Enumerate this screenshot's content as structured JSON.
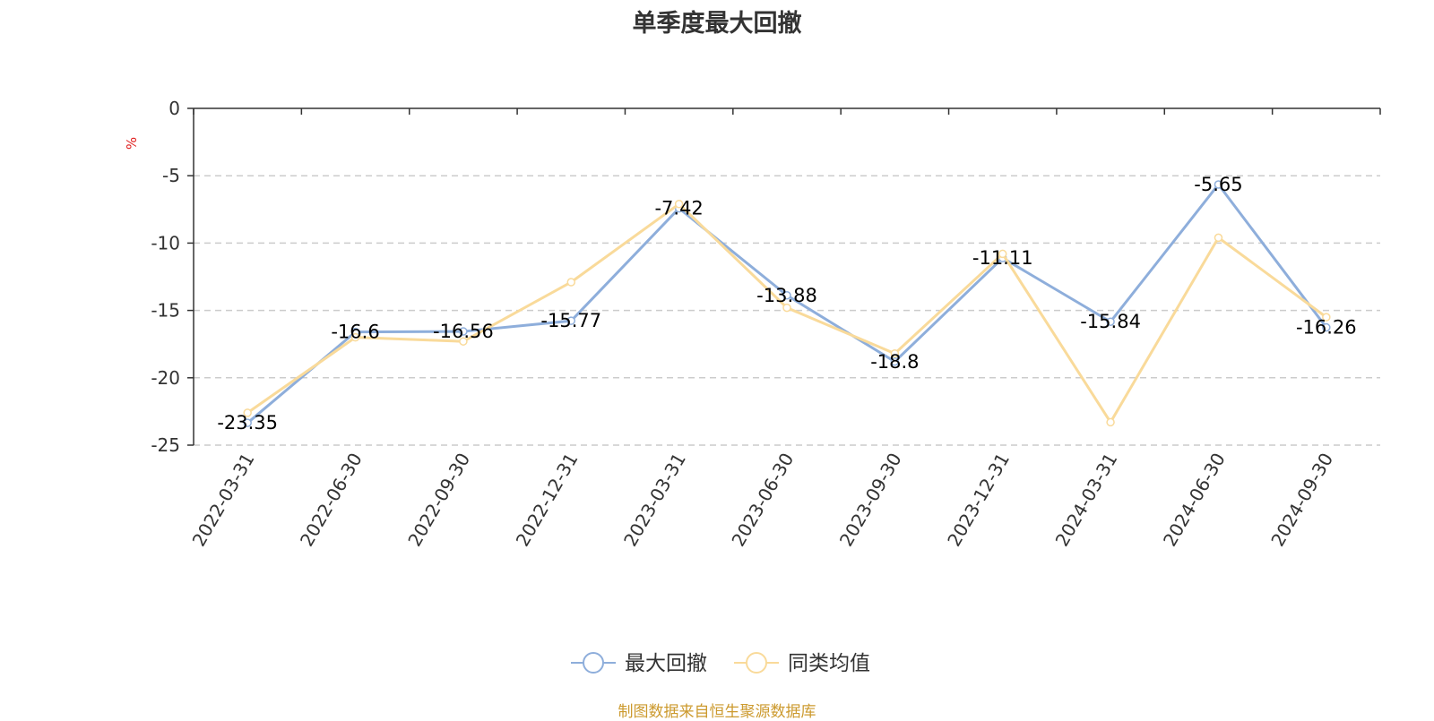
{
  "chart_data": {
    "type": "line",
    "title": "单季度最大回撤",
    "ylabel": "%",
    "xlabel": "",
    "ylim": [
      -25,
      0
    ],
    "yticks": [
      0,
      -5,
      -10,
      -15,
      -20,
      -25
    ],
    "grid": true,
    "legend_position": "bottom-center",
    "x": [
      "2022-03-31",
      "2022-06-30",
      "2022-09-30",
      "2022-12-31",
      "2023-03-31",
      "2023-06-30",
      "2023-09-30",
      "2023-12-31",
      "2024-03-31",
      "2024-06-30",
      "2024-09-30"
    ],
    "series": [
      {
        "name": "最大回撤",
        "color": "#8eaedb",
        "values": [
          -23.35,
          -16.6,
          -16.56,
          -15.77,
          -7.42,
          -13.88,
          -18.8,
          -11.11,
          -15.84,
          -5.65,
          -16.26
        ],
        "data_labels": [
          "-23.35",
          "-16.6",
          "-16.56",
          "-15.77",
          "-7.42",
          "-13.88",
          "-18.8",
          "-11.11",
          "-15.84",
          "-5.65",
          "-16.26"
        ]
      },
      {
        "name": "同类均值",
        "color": "#f9da9a",
        "values": [
          -22.6,
          -17.0,
          -17.3,
          -12.9,
          -7.1,
          -14.8,
          -18.2,
          -10.8,
          -23.3,
          -9.6,
          -15.5
        ]
      }
    ],
    "source_note": "制图数据来自恒生聚源数据库"
  }
}
